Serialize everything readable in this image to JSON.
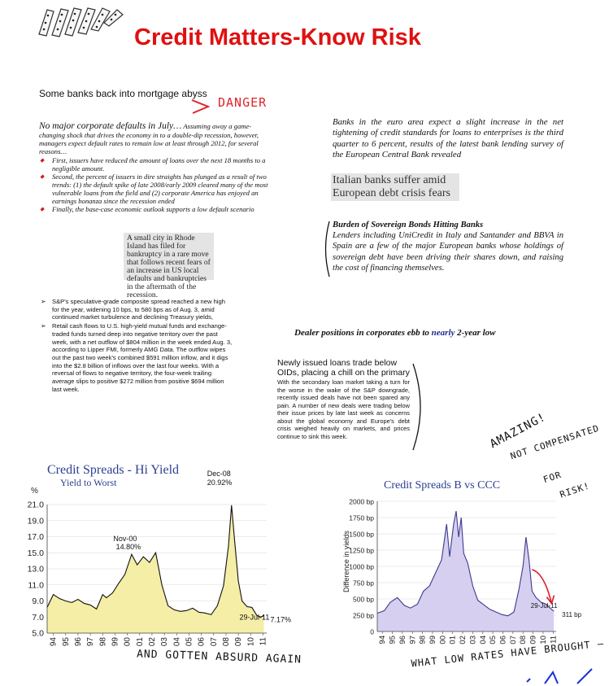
{
  "title": "Credit Matters-Know Risk",
  "headline_banks": "Some banks back into mortgage abyss",
  "note_danger": "DANGER",
  "defaults": {
    "heading": "No major corporate defaults in July…",
    "intro": "Assuming away a game-changing shock that drives the economy in to a double-dip recession, however, managers expect default rates to remain low at least through 2012, for several reasons…",
    "bullets": [
      "First, issuers have reduced the amount of loans over the next 18 months to a negligible amount.",
      "Second, the percent of issuers in dire straights has plunged as a result of two trends: (1) the default spike of late 2008/early 2009 cleared many of the most vulnerable loans from the field and (2) corporate America has enjoyed an earnings bonanza since the recession ended",
      "Finally, the base-case economic outlook supports a low default scenario"
    ]
  },
  "rhode_island_clip": "A small city in Rhode Island has filed for bankruptcy in a rare move that follows recent fears of an increase in US local defaults and bankruptcies in the aftermath of the recession.",
  "sp_bullets": [
    "S&P's speculative-grade composite spread reached a new high for the year, widening 10 bps, to 580 bps as of Aug. 3, amid continued market turbulence and declining Treasury yields,",
    "Retail cash flows to U.S. high-yield mutual funds and exchange-traded funds turned deep into negative territory over the past week, with a net outflow of $804 million in the week ended Aug. 3, according to Lipper FMI, formerly AMG Data. The outflow wipes out the past two week's combined $591 million inflow, and it digs into the $2.8 billion of inflows over the last four weeks. With a reversal of flows to negative territory, the four-week trailing average slips to positive $272 million from positive $694 million last week."
  ],
  "euro_text": "Banks in the euro area expect a slight increase in the net tightening of credit standards for loans to enterprises is the third quarter to 6 percent, results of the latest bank lending survey of the European Central Bank revealed",
  "italian_clip": "Italian banks suffer amid European debt crisis fears",
  "burden": {
    "heading": "Burden of Sovereign Bonds Hitting Banks",
    "body": "Lenders including UniCredit in Italy and Santander and BBVA in Spain are a few of the major European banks whose holdings of sovereign debt have been driving their shares down, and raising the cost of financing themselves."
  },
  "dealer": {
    "part1": "Dealer positions in corporates ebb to ",
    "part2": "nearly",
    "part3": " 2-year low"
  },
  "loans": {
    "heading": "Newly issued loans trade below OIDs, placing a chill on the primary",
    "body": "With the secondary loan market taking a turn for the worse in the wake of the S&P downgrade, recently issued deals have not been spared any pain. A number of new deals were trading below their issue prices by late last week as concerns about the global economy and Europe's debt crisis weighed heavily on markets, and prices continue to sink this week."
  },
  "notes": {
    "hy": "AND GOTTEN ABSURD AGAIN",
    "bc": "WHAT LOW RATES HAVE BROUGHT –",
    "amazing": "AMAZING!",
    "not_compensated": "NOT COMPENSATED",
    "for": "FOR",
    "risk": "RISK!"
  },
  "chart_data": [
    {
      "type": "area",
      "title": "Credit Spreads - Hi Yield",
      "subtitle": "Yield to Worst",
      "unit": "%",
      "yticks": [
        "21.0",
        "19.0",
        "17.0",
        "15.0",
        "13.0",
        "11.0",
        "9.0",
        "7.0",
        "5.0"
      ],
      "ylim": [
        5,
        21
      ],
      "xticks": [
        "94",
        "95",
        "96",
        "97",
        "98",
        "99",
        "00",
        "01",
        "02",
        "03",
        "04",
        "05",
        "06",
        "07",
        "08",
        "09",
        "10",
        "11"
      ],
      "x": [
        1994.0,
        1994.5,
        1995.0,
        1995.5,
        1996.0,
        1996.5,
        1997.0,
        1997.5,
        1998.0,
        1998.5,
        1998.8,
        1999.3,
        1999.8,
        2000.3,
        2000.85,
        2001.3,
        2001.8,
        2002.3,
        2002.8,
        2003.3,
        2003.8,
        2004.3,
        2004.8,
        2005.3,
        2005.8,
        2006.3,
        2006.8,
        2007.3,
        2007.8,
        2008.3,
        2008.7,
        2008.95,
        2009.2,
        2009.5,
        2009.8,
        2010.2,
        2010.6,
        2011.0,
        2011.3,
        2011.57
      ],
      "y": [
        8.2,
        9.8,
        9.3,
        9.0,
        8.8,
        9.2,
        8.7,
        8.5,
        8.0,
        9.8,
        9.4,
        10.0,
        11.2,
        12.3,
        14.8,
        13.5,
        14.5,
        13.8,
        15.0,
        11.0,
        8.4,
        7.9,
        7.7,
        7.8,
        8.1,
        7.6,
        7.5,
        7.3,
        8.4,
        10.9,
        15.8,
        20.92,
        16.5,
        11.5,
        9.0,
        8.3,
        8.2,
        7.2,
        7.0,
        7.17
      ],
      "annotations": [
        {
          "label": "Nov-00",
          "value": "14.80%",
          "x": 2000.85,
          "y": 14.8
        },
        {
          "label": "Dec-08",
          "value": "20.92%",
          "x": 2008.95,
          "y": 20.92
        },
        {
          "label": "29-Jul-11",
          "value": "7.17%",
          "x": 2011.57,
          "y": 7.17
        }
      ],
      "colors": {
        "fill": "#f4eea7",
        "line": "#111111",
        "title": "#2c3f91"
      }
    },
    {
      "type": "area",
      "title": "Credit Spreads  B vs CCC",
      "ylabel": "Difference in yields",
      "yticks": [
        "2000 bp",
        "1750 bp",
        "1500 bp",
        "1250 bp",
        "1000 bp",
        "750 bp",
        "500 bp",
        "250 bp",
        "0"
      ],
      "ylim": [
        0,
        2000
      ],
      "xticks": [
        "94",
        "95",
        "96",
        "97",
        "98",
        "99",
        "00",
        "01",
        "02",
        "03",
        "04",
        "05",
        "06",
        "07",
        "08",
        "09",
        "10",
        "11"
      ],
      "x": [
        1994.0,
        1994.7,
        1995.3,
        1996.0,
        1996.7,
        1997.3,
        1998.0,
        1998.6,
        1999.2,
        1999.8,
        2000.4,
        2000.9,
        2001.2,
        2001.6,
        2001.85,
        2002.1,
        2002.35,
        2002.6,
        2003.0,
        2003.5,
        2004.0,
        2004.6,
        2005.2,
        2005.8,
        2006.4,
        2007.0,
        2007.6,
        2008.1,
        2008.5,
        2008.8,
        2009.1,
        2009.4,
        2009.8,
        2010.3,
        2010.8,
        2011.2,
        2011.57
      ],
      "y": [
        280,
        320,
        450,
        520,
        400,
        360,
        420,
        620,
        700,
        900,
        1100,
        1650,
        1150,
        1650,
        1850,
        1450,
        1750,
        1200,
        1050,
        700,
        480,
        410,
        340,
        300,
        260,
        240,
        300,
        650,
        1000,
        1450,
        1100,
        620,
        520,
        450,
        420,
        360,
        311
      ],
      "annotations": [
        {
          "label": "29-Jul-11",
          "value": "311 bp",
          "x": 2011.57,
          "y": 311
        }
      ],
      "colors": {
        "fill": "#d7cff0",
        "line": "#3b3b8f",
        "title": "#2c3f91",
        "arrow": "#e01a2a"
      }
    }
  ]
}
